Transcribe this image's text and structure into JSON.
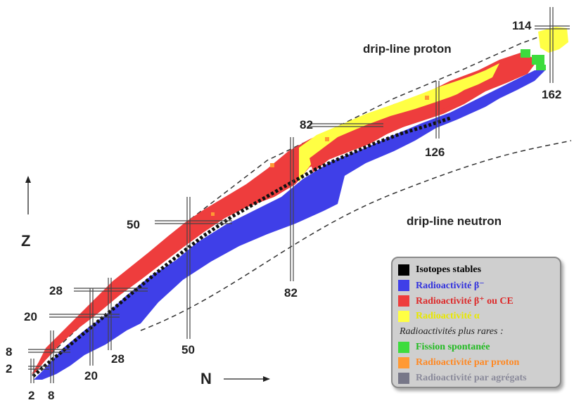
{
  "axes": {
    "x_label": "N",
    "y_label": "Z"
  },
  "magic_numbers": {
    "z": [
      "2",
      "8",
      "20",
      "28",
      "50",
      "82",
      "114"
    ],
    "n": [
      "2",
      "8",
      "20",
      "28",
      "50",
      "82",
      "126",
      "162"
    ]
  },
  "drip_lines": {
    "proton": "drip-line proton",
    "neutron": "drip-line neutron"
  },
  "legend": {
    "items": [
      {
        "label": "Isotopes stables",
        "color": "#000000",
        "text_color": "#000000"
      },
      {
        "label": "Radioactivité β⁻",
        "color": "#3f3fe8",
        "text_color": "#3333dd"
      },
      {
        "label": "Radioactivité β⁺ ou CE",
        "color": "#ee3d3d",
        "text_color": "#dd2a2a"
      },
      {
        "label": "Radioactivité α",
        "color": "#ffff44",
        "text_color": "#e8e800"
      }
    ],
    "subtitle": "Radioactivités plus rares :",
    "rare_items": [
      {
        "label": "Fission spontanée",
        "color": "#3ddc3d",
        "text_color": "#22bb22"
      },
      {
        "label": "Radioactivité par proton",
        "color": "#ff9933",
        "text_color": "#ff8822"
      },
      {
        "label": "Radioactivité par agrégats",
        "color": "#777788",
        "text_color": "#8a8a9a"
      }
    ]
  },
  "colors": {
    "stable": "#111111",
    "beta_minus": "#3f3fe8",
    "beta_plus": "#ee3d3d",
    "alpha": "#ffff44",
    "fission": "#3ddc3d",
    "proton": "#ff9933"
  }
}
